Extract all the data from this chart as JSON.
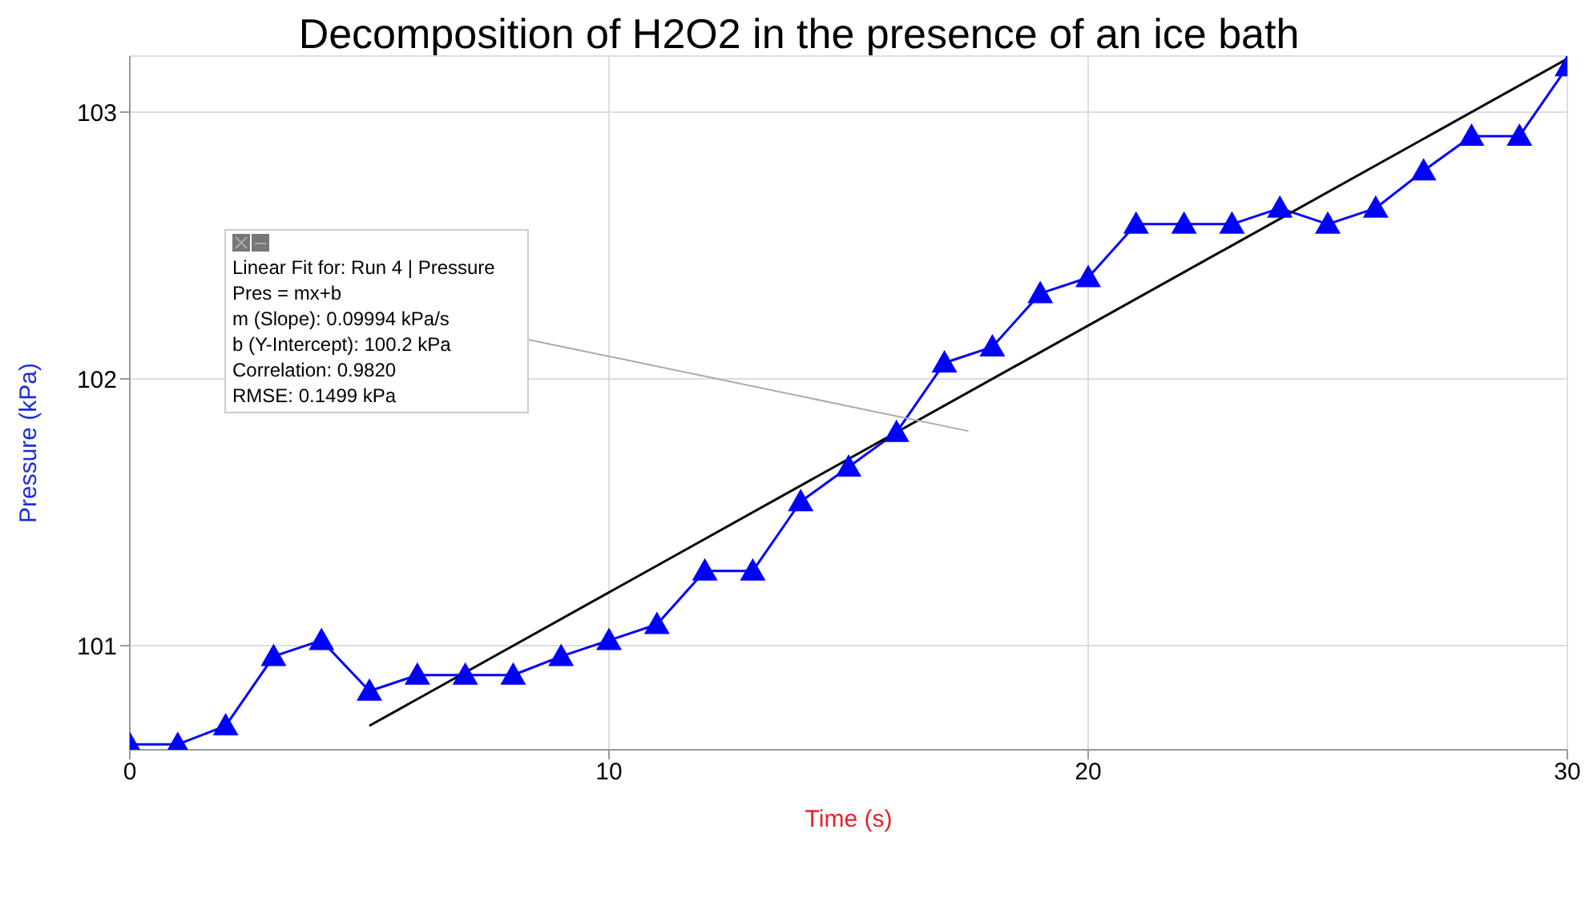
{
  "chart_data": {
    "type": "line",
    "title": "Decomposition of H2O2 in the presence of an ice bath",
    "xlabel": "Time (s)",
    "ylabel": "Pressure (kPa)",
    "xlim": [
      0,
      30
    ],
    "xticks": [
      0,
      10,
      20,
      30
    ],
    "ylim": [
      100.61,
      103.21
    ],
    "yticks": [
      101,
      102,
      103
    ],
    "grid": true,
    "legend": false,
    "annotations": [
      "Linear Fit for: Run 4 | Pressure",
      "Pres = mx+b",
      "m (Slope): 0.09994 kPa/s",
      "b (Y-Intercept): 100.2 kPa",
      "Correlation: 0.9820",
      "RMSE: 0.1499 kPa"
    ],
    "series": [
      {
        "color": "#0000ff",
        "marker": "triangle",
        "x": [
          0,
          1,
          2,
          3,
          4,
          5,
          6,
          7,
          8,
          9,
          10,
          11,
          12,
          13,
          14,
          15,
          16,
          17,
          18,
          19,
          20,
          21,
          22,
          23,
          24,
          25,
          26,
          27,
          28,
          29,
          30
        ],
        "values": [
          100.63,
          100.63,
          100.7,
          100.96,
          101.02,
          100.83,
          100.89,
          100.89,
          100.89,
          100.96,
          101.02,
          101.08,
          101.28,
          101.28,
          101.54,
          101.67,
          101.8,
          102.06,
          102.12,
          102.32,
          102.38,
          102.58,
          102.58,
          102.58,
          102.64,
          102.58,
          102.64,
          102.78,
          102.91,
          102.91,
          103.17
        ]
      },
      {
        "color": "#000000",
        "marker": "none",
        "x": [
          5,
          30
        ],
        "values": [
          100.7,
          103.2
        ]
      }
    ]
  }
}
